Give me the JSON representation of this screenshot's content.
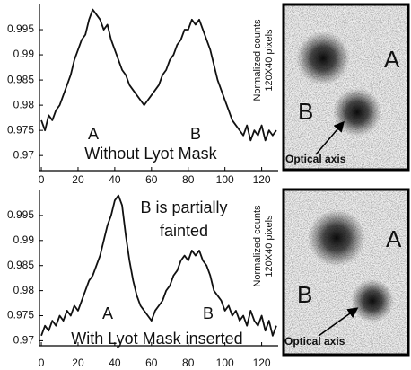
{
  "chart_data": [
    {
      "type": "line",
      "ylabel": [
        "Normalized counts",
        "120X40 pixels"
      ],
      "annotations": [
        "A",
        "B",
        "Without Lyot Mask"
      ],
      "x": [
        0,
        2,
        4,
        6,
        8,
        10,
        12,
        14,
        16,
        18,
        20,
        22,
        24,
        26,
        28,
        30,
        32,
        34,
        36,
        38,
        40,
        42,
        44,
        46,
        48,
        50,
        52,
        54,
        56,
        58,
        60,
        62,
        64,
        66,
        68,
        70,
        72,
        74,
        76,
        78,
        80,
        82,
        84,
        86,
        88,
        90,
        92,
        94,
        96,
        98,
        100,
        102,
        104,
        106,
        108,
        110,
        112,
        114,
        116,
        118,
        120,
        122,
        124,
        126,
        128
      ],
      "series": [
        {
          "color": "#111111",
          "values": [
            0.977,
            0.975,
            0.978,
            0.977,
            0.979,
            0.98,
            0.982,
            0.984,
            0.986,
            0.989,
            0.991,
            0.993,
            0.994,
            0.997,
            0.999,
            0.998,
            0.997,
            0.995,
            0.996,
            0.993,
            0.991,
            0.989,
            0.987,
            0.986,
            0.984,
            0.983,
            0.982,
            0.981,
            0.98,
            0.981,
            0.982,
            0.983,
            0.984,
            0.986,
            0.987,
            0.989,
            0.99,
            0.992,
            0.993,
            0.995,
            0.995,
            0.997,
            0.996,
            0.997,
            0.995,
            0.993,
            0.991,
            0.988,
            0.985,
            0.983,
            0.981,
            0.979,
            0.977,
            0.976,
            0.975,
            0.974,
            0.976,
            0.973,
            0.975,
            0.974,
            0.976,
            0.973,
            0.975,
            0.974,
            0.975
          ]
        }
      ],
      "xlim": [
        -1,
        129
      ],
      "ylim": [
        0.967,
        1.0
      ],
      "xticks": [
        0,
        20,
        40,
        60,
        80,
        100,
        120
      ],
      "yticks": [
        0.97,
        0.975,
        0.98,
        0.985,
        0.99,
        0.995
      ]
    },
    {
      "type": "line",
      "ylabel": [
        "Normalized counts",
        "120X40 pixels"
      ],
      "annotations": [
        "B is partially",
        "fainted",
        "A",
        "B",
        "With Lyot Mask inserted"
      ],
      "x": [
        0,
        2,
        4,
        6,
        8,
        10,
        12,
        14,
        16,
        18,
        20,
        22,
        24,
        26,
        28,
        30,
        32,
        34,
        36,
        38,
        40,
        42,
        44,
        46,
        48,
        50,
        52,
        54,
        56,
        58,
        60,
        62,
        64,
        66,
        68,
        70,
        72,
        74,
        76,
        78,
        80,
        82,
        84,
        86,
        88,
        90,
        92,
        94,
        96,
        98,
        100,
        102,
        104,
        106,
        108,
        110,
        112,
        114,
        116,
        118,
        120,
        122,
        124,
        126,
        128
      ],
      "series": [
        {
          "color": "#111111",
          "values": [
            0.971,
            0.973,
            0.972,
            0.974,
            0.973,
            0.975,
            0.974,
            0.976,
            0.975,
            0.977,
            0.976,
            0.978,
            0.98,
            0.982,
            0.983,
            0.985,
            0.987,
            0.99,
            0.993,
            0.995,
            0.998,
            0.999,
            0.997,
            0.991,
            0.986,
            0.982,
            0.979,
            0.977,
            0.976,
            0.975,
            0.974,
            0.976,
            0.977,
            0.978,
            0.98,
            0.981,
            0.983,
            0.984,
            0.986,
            0.987,
            0.986,
            0.988,
            0.987,
            0.988,
            0.986,
            0.985,
            0.983,
            0.98,
            0.979,
            0.978,
            0.976,
            0.977,
            0.975,
            0.976,
            0.974,
            0.975,
            0.973,
            0.976,
            0.974,
            0.973,
            0.975,
            0.972,
            0.974,
            0.971,
            0.973
          ]
        }
      ],
      "xlim": [
        -1,
        129
      ],
      "ylim": [
        0.969,
        1.0
      ],
      "xticks": [
        0,
        20,
        40,
        60,
        80,
        100,
        120
      ],
      "yticks": [
        0.97,
        0.975,
        0.98,
        0.985,
        0.99,
        0.995
      ]
    }
  ],
  "images": [
    {
      "labels": [
        "A",
        "B",
        "Optical axis"
      ]
    },
    {
      "labels": [
        "A",
        "B",
        "Optical axis"
      ]
    }
  ]
}
